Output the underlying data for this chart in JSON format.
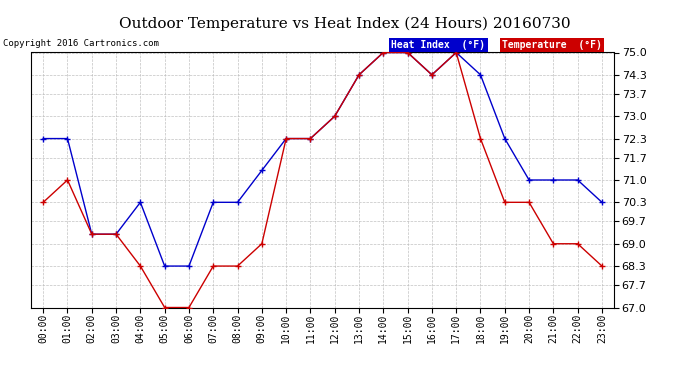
{
  "title": "Outdoor Temperature vs Heat Index (24 Hours) 20160730",
  "copyright": "Copyright 2016 Cartronics.com",
  "hours": [
    "00:00",
    "01:00",
    "02:00",
    "03:00",
    "04:00",
    "05:00",
    "06:00",
    "07:00",
    "08:00",
    "09:00",
    "10:00",
    "11:00",
    "12:00",
    "13:00",
    "14:00",
    "15:00",
    "16:00",
    "17:00",
    "18:00",
    "19:00",
    "20:00",
    "21:00",
    "22:00",
    "23:00"
  ],
  "heat_index": [
    72.3,
    72.3,
    69.3,
    69.3,
    70.3,
    68.3,
    68.3,
    70.3,
    70.3,
    71.3,
    72.3,
    72.3,
    73.0,
    74.3,
    75.0,
    75.0,
    74.3,
    75.0,
    74.3,
    72.3,
    71.0,
    71.0,
    71.0,
    70.3
  ],
  "temperature": [
    70.3,
    71.0,
    69.3,
    69.3,
    68.3,
    67.0,
    67.0,
    68.3,
    68.3,
    69.0,
    72.3,
    72.3,
    73.0,
    74.3,
    75.0,
    75.0,
    74.3,
    75.0,
    72.3,
    70.3,
    70.3,
    69.0,
    69.0,
    68.3
  ],
  "ylim": [
    67.0,
    75.0
  ],
  "yticks": [
    67.0,
    67.7,
    68.3,
    69.0,
    69.7,
    70.3,
    71.0,
    71.7,
    72.3,
    73.0,
    73.7,
    74.3,
    75.0
  ],
  "heat_index_color": "#0000cc",
  "temperature_color": "#cc0000",
  "background_color": "#ffffff",
  "plot_bg_color": "#ffffff",
  "grid_color": "#bbbbbb",
  "title_fontsize": 12,
  "legend_heat_index_bg": "#0000cc",
  "legend_temperature_bg": "#cc0000",
  "legend_text_color": "#ffffff"
}
